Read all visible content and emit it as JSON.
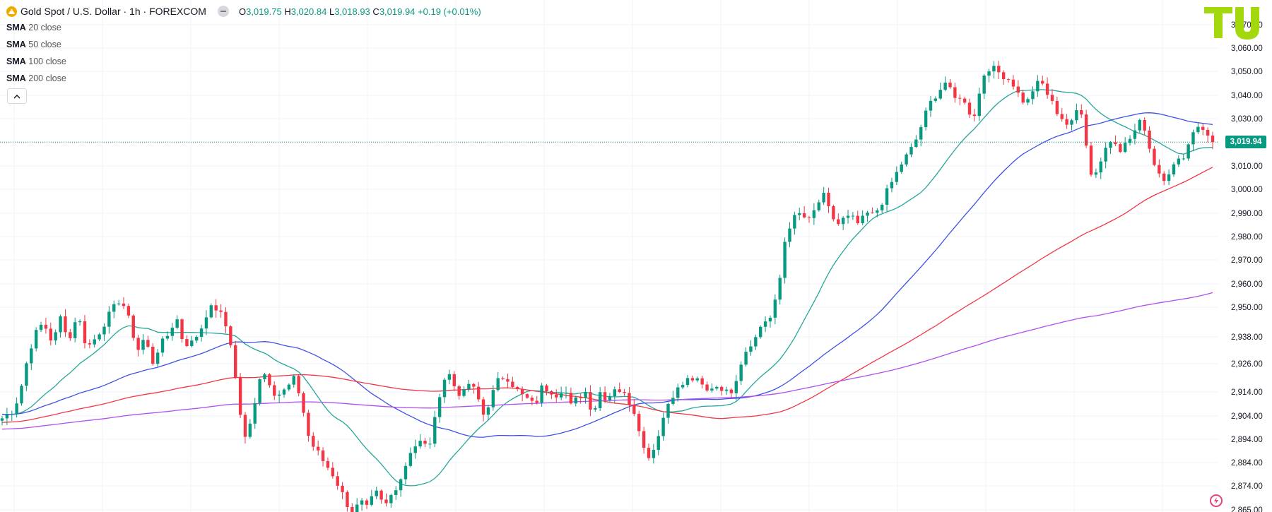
{
  "header": {
    "symbol": "Gold Spot / U.S. Dollar · 1h · FOREXCOM",
    "open_label": "O",
    "open": "3,019.75",
    "high_label": "H",
    "high": "3,020.84",
    "low_label": "L",
    "low": "3,018.93",
    "close_label": "C",
    "close": "3,019.94",
    "change": "+0.19 (+0.01%)"
  },
  "indicators": [
    {
      "kind": "SMA",
      "params": "20 close",
      "color": "#26a69a"
    },
    {
      "kind": "SMA",
      "params": "50 close",
      "color": "#3f51e6"
    },
    {
      "kind": "SMA",
      "params": "100 close",
      "color": "#f23645"
    },
    {
      "kind": "SMA",
      "params": "200 close",
      "color": "#b14ef0"
    }
  ],
  "last_price_label": "3,019.94",
  "colors": {
    "up": "#089981",
    "down": "#f23645",
    "price_line": "#089981",
    "grid": "#f0f3fa",
    "logo": "#a3d80d"
  },
  "icons": {
    "gold": "gold-coin-icon",
    "eye": "minus-icon",
    "collapse": "chevron-up-icon",
    "flash": "lightning-icon",
    "logo": "tu-logo-icon"
  },
  "chart_data": {
    "type": "candlestick",
    "title": "Gold Spot / U.S. Dollar · 1h · FOREXCOM",
    "xlabel": "",
    "ylabel": "",
    "ylim": [
      2861,
      3071
    ],
    "y_ticks": [
      "2,865.00",
      "2,874.00",
      "2,884.00",
      "2,894.00",
      "2,904.00",
      "2,914.00",
      "2,926.00",
      "2,938.00",
      "2,950.00",
      "2,960.00",
      "2,970.00",
      "2,980.00",
      "2,990.00",
      "3,000.00",
      "3,010.00",
      "3,020.00",
      "3,030.00",
      "3,040.00",
      "3,050.00",
      "3,060.00",
      "3,070.00"
    ],
    "y_tick_values": [
      2865,
      2874,
      2884,
      2894,
      2904,
      2914,
      2926,
      2938,
      2950,
      2960,
      2970,
      2980,
      2990,
      3000,
      3010,
      3020,
      3030,
      3040,
      3050,
      3060,
      3070
    ],
    "last_price": 3019.94,
    "close_path": [
      [
        0,
        2903
      ],
      [
        8,
        2906
      ],
      [
        14,
        2912
      ],
      [
        20,
        2926
      ],
      [
        26,
        2938
      ],
      [
        34,
        2944
      ],
      [
        42,
        2935
      ],
      [
        48,
        2946
      ],
      [
        56,
        2937
      ],
      [
        62,
        2948
      ],
      [
        70,
        2933
      ],
      [
        78,
        2938
      ],
      [
        86,
        2945
      ],
      [
        94,
        2951
      ],
      [
        98,
        2954
      ],
      [
        106,
        2943
      ],
      [
        112,
        2932
      ],
      [
        118,
        2938
      ],
      [
        124,
        2926
      ],
      [
        130,
        2934
      ],
      [
        136,
        2938
      ],
      [
        144,
        2946
      ],
      [
        150,
        2935
      ],
      [
        156,
        2935
      ],
      [
        164,
        2941
      ],
      [
        170,
        2949
      ],
      [
        176,
        2950
      ],
      [
        182,
        2946
      ],
      [
        188,
        2938
      ],
      [
        194,
        2915
      ],
      [
        200,
        2893
      ],
      [
        206,
        2902
      ],
      [
        212,
        2920
      ],
      [
        218,
        2922
      ],
      [
        224,
        2914
      ],
      [
        230,
        2913
      ],
      [
        236,
        2916
      ],
      [
        242,
        2920
      ],
      [
        248,
        2908
      ],
      [
        254,
        2893
      ],
      [
        260,
        2889
      ],
      [
        266,
        2884
      ],
      [
        272,
        2880
      ],
      [
        278,
        2874
      ],
      [
        284,
        2868
      ],
      [
        290,
        2864
      ],
      [
        296,
        2868
      ],
      [
        302,
        2865
      ],
      [
        308,
        2872
      ],
      [
        316,
        2866
      ],
      [
        322,
        2871
      ],
      [
        330,
        2878
      ],
      [
        338,
        2890
      ],
      [
        346,
        2893
      ],
      [
        352,
        2890
      ],
      [
        356,
        2898
      ],
      [
        362,
        2915
      ],
      [
        368,
        2923
      ],
      [
        374,
        2916
      ],
      [
        380,
        2912
      ],
      [
        386,
        2918
      ],
      [
        392,
        2913
      ],
      [
        398,
        2904
      ],
      [
        404,
        2912
      ],
      [
        410,
        2919
      ],
      [
        416,
        2921
      ],
      [
        422,
        2917
      ],
      [
        428,
        2913
      ],
      [
        434,
        2911
      ],
      [
        440,
        2908
      ],
      [
        446,
        2916
      ],
      [
        452,
        2915
      ],
      [
        458,
        2913
      ],
      [
        464,
        2916
      ],
      [
        470,
        2908
      ],
      [
        476,
        2912
      ],
      [
        482,
        2914
      ],
      [
        488,
        2905
      ],
      [
        494,
        2914
      ],
      [
        500,
        2911
      ],
      [
        506,
        2916
      ],
      [
        512,
        2914
      ],
      [
        518,
        2910
      ],
      [
        524,
        2904
      ],
      [
        530,
        2890
      ],
      [
        536,
        2886
      ],
      [
        540,
        2893
      ],
      [
        546,
        2903
      ],
      [
        552,
        2912
      ],
      [
        560,
        2916
      ],
      [
        568,
        2920
      ],
      [
        576,
        2918
      ],
      [
        582,
        2914
      ],
      [
        588,
        2917
      ],
      [
        594,
        2916
      ],
      [
        600,
        2913
      ],
      [
        604,
        2916
      ],
      [
        610,
        2926
      ],
      [
        616,
        2934
      ],
      [
        622,
        2937
      ],
      [
        628,
        2944
      ],
      [
        636,
        2946
      ],
      [
        642,
        2960
      ],
      [
        646,
        2977
      ],
      [
        652,
        2987
      ],
      [
        660,
        2990
      ],
      [
        666,
        2986
      ],
      [
        672,
        2992
      ],
      [
        678,
        2998
      ],
      [
        684,
        2990
      ],
      [
        690,
        2985
      ],
      [
        696,
        2988
      ],
      [
        702,
        2988
      ],
      [
        708,
        2985
      ],
      [
        714,
        2990
      ],
      [
        720,
        2989
      ],
      [
        726,
        2994
      ],
      [
        732,
        3000
      ],
      [
        738,
        3006
      ],
      [
        744,
        3012
      ],
      [
        750,
        3016
      ],
      [
        756,
        3022
      ],
      [
        762,
        3031
      ],
      [
        768,
        3038
      ],
      [
        774,
        3042
      ],
      [
        780,
        3046
      ],
      [
        786,
        3038
      ],
      [
        792,
        3040
      ],
      [
        798,
        3033
      ],
      [
        804,
        3032
      ],
      [
        810,
        3048
      ],
      [
        816,
        3052
      ],
      [
        822,
        3050
      ],
      [
        828,
        3048
      ],
      [
        834,
        3046
      ],
      [
        840,
        3040
      ],
      [
        846,
        3036
      ],
      [
        852,
        3043
      ],
      [
        858,
        3046
      ],
      [
        864,
        3040
      ],
      [
        870,
        3034
      ],
      [
        876,
        3030
      ],
      [
        882,
        3026
      ],
      [
        888,
        3034
      ],
      [
        892,
        3033
      ],
      [
        896,
        3018
      ],
      [
        900,
        3005
      ],
      [
        906,
        3010
      ],
      [
        912,
        3018
      ],
      [
        918,
        3022
      ],
      [
        924,
        3017
      ],
      [
        930,
        3020
      ],
      [
        936,
        3025
      ],
      [
        942,
        3030
      ],
      [
        948,
        3017
      ],
      [
        954,
        3008
      ],
      [
        960,
        3005
      ],
      [
        966,
        3009
      ],
      [
        972,
        3012
      ],
      [
        978,
        3016
      ],
      [
        984,
        3025
      ],
      [
        990,
        3028
      ],
      [
        996,
        3022
      ],
      [
        1000,
        3019.94
      ]
    ],
    "series": [
      {
        "name": "SMA 20 close",
        "color": "#26a69a"
      },
      {
        "name": "SMA 50 close",
        "color": "#3f51e6"
      },
      {
        "name": "SMA 100 close",
        "color": "#f23645"
      },
      {
        "name": "SMA 200 close",
        "color": "#b14ef0"
      }
    ],
    "grid": true,
    "legend": "top-left"
  }
}
